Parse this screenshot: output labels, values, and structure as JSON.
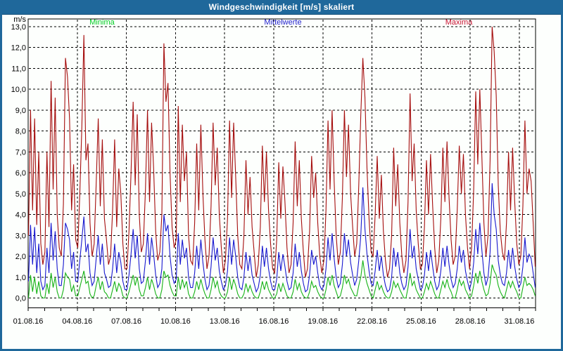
{
  "window": {
    "title": "Windgeschwindigkeit [m/s] skaliert"
  },
  "legend": {
    "minima": "Minima",
    "mittelwerte": "Mittelwerte",
    "maxima": "Maxima"
  },
  "axis": {
    "unit_label": "m/s",
    "y_tick_labels": [
      "13,0",
      "12,0",
      "11,0",
      "10,0",
      "9,0",
      "8,0",
      "7,0",
      "6,0",
      "5,0",
      "4,0",
      "3,0",
      "2,0",
      "1,0",
      "0,0"
    ],
    "x_tick_labels": [
      "01.08.16",
      "04.08.16",
      "07.08.16",
      "10.08.16",
      "13.08.16",
      "16.08.16",
      "19.08.16",
      "22.08.16",
      "25.08.16",
      "28.08.16",
      "31.08.16"
    ]
  },
  "colors": {
    "titlebar": "#1f689b",
    "frame": "#1f689b",
    "background": "#fdfffd",
    "grid": "#000000",
    "minima_line": "#16b216",
    "mittelwerte_line": "#1717cf",
    "maxima_line": "#a50d0d",
    "legend_minima": "#00cc22",
    "legend_mittelwerte": "#2222cc",
    "legend_maxima": "#c81432"
  },
  "chart_data": {
    "type": "line",
    "title": "Windgeschwindigkeit [m/s] skaliert",
    "xlabel": "",
    "ylabel": "m/s",
    "ylim": [
      0,
      13
    ],
    "grid": "dashed",
    "legend_position": "top",
    "x_start": "01.08.16",
    "x_end": "31.08.16",
    "x_tick_interval_days": 3,
    "x_minor_tick_interval_days": 1,
    "points_per_day": 8,
    "x_tick_labels": [
      "01.08.16",
      "04.08.16",
      "07.08.16",
      "10.08.16",
      "13.08.16",
      "16.08.16",
      "19.08.16",
      "22.08.16",
      "25.08.16",
      "28.08.16",
      "31.08.16"
    ],
    "series": [
      {
        "name": "Minima",
        "color": "#16b216",
        "values": [
          0.0,
          1.1,
          0.3,
          1.0,
          0.2,
          0.8,
          0.1,
          0.0,
          0.0,
          0.7,
          0.2,
          1.2,
          0.5,
          1.0,
          0.3,
          0.0,
          0.0,
          0.4,
          1.2,
          1.0,
          0.9,
          0.3,
          0.6,
          0.1,
          0.1,
          0.5,
          0.9,
          1.3,
          0.7,
          0.8,
          0.2,
          0.0,
          0.1,
          0.6,
          1.0,
          0.4,
          0.8,
          0.3,
          0.2,
          0.0,
          0.0,
          0.4,
          0.8,
          0.3,
          0.7,
          0.5,
          0.1,
          0.0,
          0.0,
          0.3,
          0.7,
          1.1,
          0.6,
          1.0,
          0.4,
          0.1,
          0.1,
          0.5,
          1.0,
          0.4,
          0.9,
          0.6,
          0.2,
          0.0,
          0.0,
          0.4,
          1.3,
          1.0,
          1.1,
          0.6,
          0.3,
          0.1,
          0.1,
          1.0,
          0.4,
          0.9,
          0.5,
          0.8,
          0.2,
          0.0,
          0.0,
          0.3,
          0.8,
          0.4,
          0.9,
          0.5,
          0.2,
          0.0,
          0.0,
          0.4,
          1.0,
          0.5,
          0.8,
          0.3,
          0.1,
          0.0,
          0.0,
          0.3,
          1.0,
          0.4,
          0.9,
          0.6,
          0.2,
          0.0,
          0.0,
          0.2,
          0.7,
          0.3,
          0.6,
          0.3,
          0.1,
          0.0,
          0.0,
          0.3,
          0.8,
          0.4,
          0.8,
          0.4,
          0.2,
          0.0,
          0.0,
          0.2,
          0.7,
          0.3,
          0.7,
          0.4,
          0.1,
          0.0,
          0.0,
          0.3,
          0.9,
          0.4,
          0.7,
          0.3,
          0.1,
          0.0,
          0.0,
          0.3,
          0.8,
          0.5,
          0.6,
          0.3,
          0.1,
          0.0,
          0.0,
          0.4,
          1.0,
          0.6,
          1.1,
          0.6,
          0.3,
          0.0,
          0.1,
          0.5,
          1.1,
          0.7,
          0.9,
          0.5,
          0.3,
          0.1,
          0.1,
          0.6,
          1.0,
          1.8,
          1.1,
          0.7,
          0.4,
          0.1,
          0.0,
          0.4,
          0.8,
          0.4,
          0.6,
          0.3,
          0.1,
          0.0,
          0.0,
          0.3,
          0.8,
          0.5,
          0.7,
          0.4,
          0.2,
          0.0,
          0.0,
          0.5,
          1.2,
          0.6,
          0.8,
          0.4,
          0.2,
          0.0,
          0.0,
          0.3,
          0.7,
          0.4,
          0.8,
          0.5,
          0.2,
          0.0,
          0.0,
          0.4,
          0.8,
          0.5,
          0.9,
          0.5,
          0.3,
          0.0,
          0.0,
          0.4,
          0.9,
          0.6,
          0.8,
          0.4,
          0.2,
          0.0,
          0.1,
          0.6,
          1.2,
          0.7,
          1.3,
          0.8,
          0.4,
          0.1,
          0.2,
          0.7,
          1.6,
          1.3,
          1.1,
          0.6,
          0.3,
          0.1,
          0.0,
          0.4,
          0.8,
          0.5,
          0.8,
          0.5,
          0.3,
          0.0,
          0.0,
          0.5,
          1.0,
          0.6,
          0.7,
          0.6,
          0.4,
          0.1
        ]
      },
      {
        "name": "Mittelwerte",
        "color": "#1717cf",
        "values": [
          0.8,
          3.5,
          1.6,
          3.4,
          1.2,
          2.6,
          0.8,
          0.4,
          0.6,
          2.4,
          1.2,
          3.6,
          1.8,
          3.2,
          1.4,
          0.6,
          0.6,
          1.6,
          3.6,
          3.3,
          2.8,
          1.4,
          2.2,
          0.8,
          0.8,
          1.8,
          2.8,
          3.9,
          2.2,
          2.6,
          1.2,
          0.6,
          0.8,
          1.9,
          3.0,
          1.6,
          2.6,
          1.2,
          0.9,
          0.5,
          0.6,
          1.4,
          2.6,
          1.2,
          2.2,
          1.7,
          0.8,
          0.4,
          0.4,
          1.1,
          2.1,
          3.3,
          1.9,
          3.0,
          1.4,
          0.7,
          0.8,
          1.8,
          3.1,
          1.6,
          2.9,
          2.1,
          1.1,
          0.5,
          0.7,
          1.4,
          4.0,
          3.2,
          3.5,
          2.0,
          1.1,
          0.7,
          0.9,
          3.1,
          1.6,
          2.8,
          1.9,
          2.4,
          1.0,
          0.5,
          0.5,
          1.2,
          2.5,
          1.4,
          2.8,
          1.7,
          0.9,
          0.4,
          0.6,
          1.5,
          2.9,
          1.8,
          2.4,
          1.3,
          0.8,
          0.4,
          0.6,
          1.3,
          2.9,
          1.6,
          2.8,
          2.0,
          1.0,
          0.5,
          0.4,
          1.0,
          2.2,
          1.3,
          2.0,
          1.1,
          0.7,
          0.3,
          0.5,
          1.1,
          2.5,
          1.5,
          2.4,
          1.4,
          0.8,
          0.4,
          0.4,
          0.9,
          2.2,
          1.3,
          2.1,
          1.5,
          0.8,
          0.4,
          0.5,
          1.2,
          2.6,
          1.5,
          2.2,
          1.3,
          0.7,
          0.3,
          0.4,
          1.1,
          2.3,
          1.6,
          2.0,
          1.2,
          0.6,
          0.4,
          0.6,
          1.4,
          2.9,
          1.8,
          3.1,
          1.9,
          1.0,
          0.5,
          0.7,
          1.6,
          3.1,
          2.0,
          2.8,
          1.7,
          1.1,
          0.6,
          0.9,
          1.8,
          3.0,
          5.3,
          3.3,
          2.1,
          1.3,
          0.7,
          0.6,
          1.3,
          2.3,
          1.3,
          2.0,
          1.1,
          0.6,
          0.3,
          0.4,
          1.0,
          2.4,
          1.5,
          2.2,
          1.2,
          0.7,
          0.4,
          0.6,
          1.5,
          3.3,
          1.9,
          2.5,
          1.4,
          0.9,
          0.4,
          0.5,
          1.1,
          2.2,
          1.3,
          2.3,
          1.5,
          0.8,
          0.4,
          0.6,
          1.3,
          2.4,
          1.5,
          2.5,
          1.6,
          0.9,
          0.5,
          0.7,
          1.4,
          2.5,
          1.7,
          2.3,
          1.3,
          0.8,
          0.4,
          0.8,
          1.7,
          3.3,
          2.1,
          3.6,
          2.3,
          1.2,
          0.6,
          1.0,
          2.2,
          5.5,
          4.0,
          3.3,
          1.8,
          1.1,
          0.7,
          0.6,
          1.2,
          2.3,
          1.4,
          2.4,
          1.5,
          0.9,
          0.5,
          0.7,
          1.5,
          2.9,
          1.7,
          2.1,
          1.9,
          1.2,
          0.5
        ]
      },
      {
        "name": "Maxima",
        "color": "#a50d0d",
        "values": [
          3.0,
          9.0,
          4.2,
          8.6,
          3.5,
          7.0,
          2.6,
          1.6,
          2.2,
          7.0,
          3.4,
          10.4,
          5.2,
          9.6,
          4.0,
          2.4,
          2.0,
          4.5,
          11.5,
          10.6,
          8.6,
          4.2,
          6.4,
          2.8,
          2.4,
          5.0,
          8.2,
          12.6,
          6.6,
          7.4,
          3.6,
          2.0,
          2.6,
          5.5,
          8.6,
          4.4,
          7.6,
          3.8,
          2.8,
          1.6,
          2.0,
          4.2,
          7.6,
          3.4,
          6.2,
          5.0,
          2.6,
          1.4,
          1.4,
          3.2,
          6.0,
          9.4,
          5.4,
          8.8,
          4.0,
          2.2,
          2.6,
          5.2,
          9.0,
          4.6,
          8.4,
          6.2,
          3.2,
          1.8,
          2.2,
          4.0,
          12.2,
          9.4,
          10.3,
          6.0,
          3.4,
          2.4,
          2.8,
          9.2,
          4.6,
          8.3,
          5.6,
          7.0,
          3.0,
          1.8,
          1.6,
          3.6,
          7.4,
          4.2,
          8.3,
          5.0,
          2.8,
          1.4,
          2.0,
          4.4,
          8.4,
          5.4,
          7.2,
          4.0,
          2.4,
          1.2,
          1.8,
          3.8,
          8.5,
          4.8,
          8.4,
          5.8,
          3.0,
          1.6,
          1.4,
          3.0,
          6.6,
          4.0,
          5.8,
          3.4,
          2.2,
          1.0,
          1.6,
          3.4,
          7.3,
          4.6,
          7.0,
          4.2,
          2.6,
          1.4,
          1.2,
          2.8,
          6.5,
          3.8,
          6.3,
          4.6,
          2.4,
          1.2,
          1.6,
          3.6,
          7.5,
          4.4,
          6.6,
          3.8,
          2.2,
          1.0,
          1.4,
          3.2,
          6.8,
          4.8,
          6.0,
          3.6,
          2.0,
          1.2,
          1.8,
          4.2,
          8.5,
          5.2,
          9.0,
          5.6,
          3.0,
          1.6,
          2.2,
          4.8,
          9.0,
          5.8,
          8.3,
          5.0,
          3.4,
          2.0,
          2.6,
          5.4,
          8.8,
          11.5,
          9.6,
          6.2,
          3.8,
          2.2,
          2.0,
          4.0,
          6.8,
          3.8,
          5.9,
          3.2,
          1.8,
          1.0,
          1.4,
          3.0,
          7.2,
          4.4,
          6.4,
          3.6,
          2.0,
          1.2,
          1.8,
          4.6,
          9.8,
          5.6,
          7.4,
          4.2,
          2.6,
          1.4,
          1.6,
          3.4,
          6.6,
          4.0,
          6.9,
          4.4,
          2.4,
          1.2,
          1.8,
          3.8,
          7.2,
          4.6,
          7.5,
          4.8,
          2.8,
          1.6,
          2.0,
          4.2,
          7.3,
          5.0,
          6.9,
          4.0,
          2.4,
          1.4,
          2.4,
          5.2,
          9.9,
          6.4,
          10.0,
          6.8,
          3.6,
          2.0,
          3.0,
          6.6,
          13.0,
          11.8,
          9.7,
          5.4,
          3.2,
          2.2,
          1.8,
          3.6,
          7.0,
          4.2,
          7.2,
          4.6,
          2.6,
          1.6,
          2.0,
          4.4,
          8.5,
          5.0,
          6.2,
          5.6,
          3.6,
          1.5
        ]
      }
    ]
  }
}
